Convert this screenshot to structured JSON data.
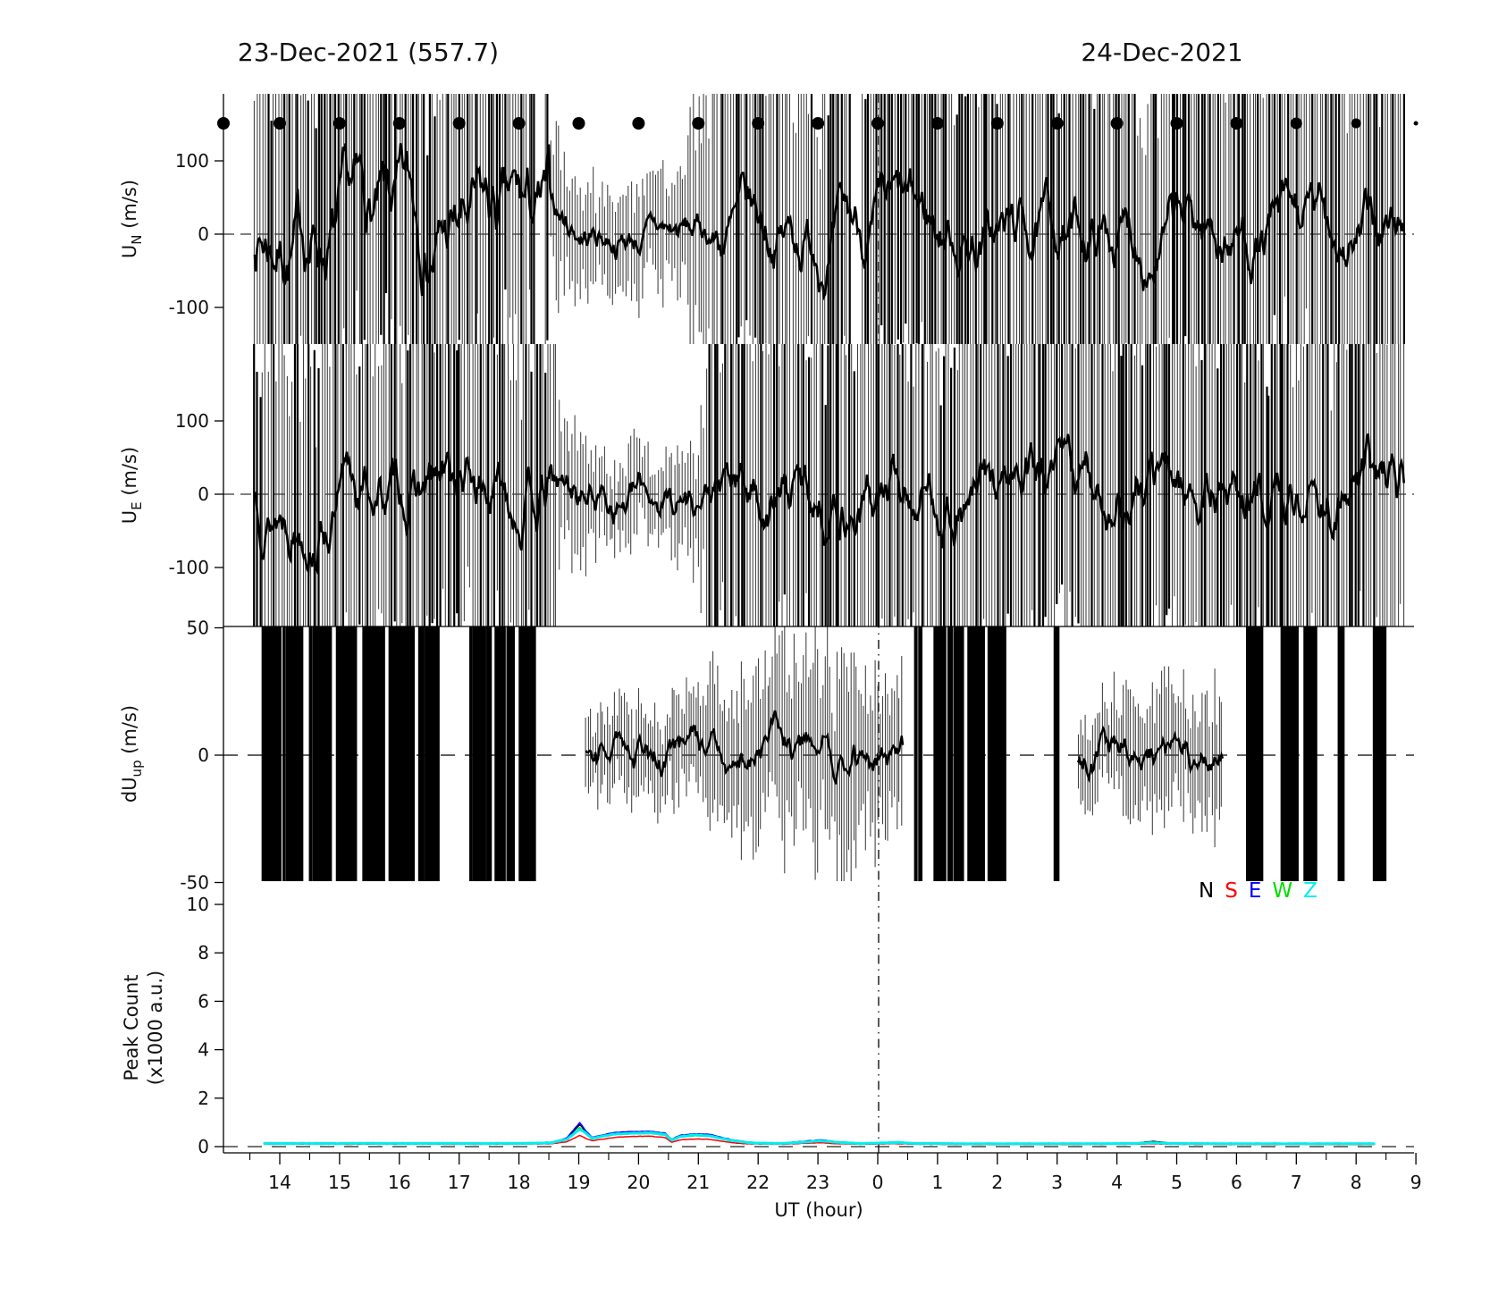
{
  "figure": {
    "title_left": "23-Dec-2021 (557.7)",
    "title_right": "24-Dec-2021",
    "xlabel": "UT (hour)",
    "background": "#ffffff",
    "ink": "#000000",
    "axis": {
      "x_range_hours_from_0UT": [
        -10.94,
        9
      ],
      "x_major": [
        {
          "t": -10,
          "label": "14"
        },
        {
          "t": -9,
          "label": "15"
        },
        {
          "t": -8,
          "label": "16"
        },
        {
          "t": -7,
          "label": "17"
        },
        {
          "t": -6,
          "label": "18"
        },
        {
          "t": -5,
          "label": "19"
        },
        {
          "t": -4,
          "label": "20"
        },
        {
          "t": -3,
          "label": "21"
        },
        {
          "t": -2,
          "label": "22"
        },
        {
          "t": -1,
          "label": "23"
        },
        {
          "t": 0,
          "label": "0"
        },
        {
          "t": 1,
          "label": "1"
        },
        {
          "t": 2,
          "label": "2"
        },
        {
          "t": 3,
          "label": "3"
        },
        {
          "t": 4,
          "label": "4"
        },
        {
          "t": 5,
          "label": "5"
        },
        {
          "t": 6,
          "label": "6"
        },
        {
          "t": 7,
          "label": "7"
        },
        {
          "t": 8,
          "label": "8"
        },
        {
          "t": 9,
          "label": "9"
        }
      ],
      "x_minor_step": 0.5
    },
    "vertical_line": {
      "t": 0,
      "style": "dashdot"
    },
    "hour_markers": {
      "t": [
        -11,
        -10,
        -9,
        -8,
        -7,
        -6,
        -5,
        -4,
        -3,
        -2,
        -1,
        0,
        1,
        2,
        3,
        4,
        5,
        6,
        7,
        8,
        9
      ],
      "radii": [
        7,
        7,
        7,
        7,
        7,
        7,
        7,
        7,
        7,
        7,
        7,
        7,
        7,
        7,
        7,
        7,
        7,
        7,
        6.5,
        5.5,
        2.5
      ]
    }
  },
  "legend": {
    "items": [
      {
        "label": "N",
        "color": "#000000"
      },
      {
        "label": "S",
        "color": "#ff0000"
      },
      {
        "label": "E",
        "color": "#0000ff"
      },
      {
        "label": "W",
        "color": "#00dd00"
      },
      {
        "label": "Z",
        "color": "#00eeee"
      }
    ]
  },
  "chart_data": [
    {
      "id": "u-north",
      "type": "line+errorbar",
      "ylabel": {
        "base": "U",
        "sub": "N",
        "unit": " (m/s)"
      },
      "ylim": [
        -150,
        190
      ],
      "yticks": [
        100,
        0,
        -100
      ],
      "zero_dash": true,
      "x_start": -10.42,
      "x_end": 8.8,
      "seed": 7,
      "mean_sigma": [
        {
          "t0": -10.5,
          "t1": -5.5,
          "a": 60
        },
        {
          "t0": -5.5,
          "t1": -2.75,
          "a": 26
        },
        {
          "t0": -2.75,
          "t1": 8.9,
          "a": 46
        }
      ],
      "err": [
        {
          "t0": -10.5,
          "t1": -5.5,
          "e0": 280,
          "e1": 280
        },
        {
          "t0": -5.5,
          "t1": -4.7,
          "e0": 95,
          "e1": 62
        },
        {
          "t0": -4.7,
          "t1": -3.2,
          "e0": 58,
          "e1": 72
        },
        {
          "t0": -3.2,
          "t1": -2.75,
          "e0": 120,
          "e1": 220
        },
        {
          "t0": -2.75,
          "t1": 8.9,
          "e0": 270,
          "e1": 270
        }
      ],
      "gaps": [
        [
          -5.74,
          -5.6
        ],
        [
          -0.44,
          -0.28
        ]
      ]
    },
    {
      "id": "u-east",
      "type": "line+errorbar",
      "ylabel": {
        "base": "U",
        "sub": "E",
        "unit": " (m/s)"
      },
      "ylim": [
        -175,
        205
      ],
      "yticks": [
        100,
        0,
        -100
      ],
      "zero_dash": true,
      "x_start": -10.42,
      "x_end": 8.8,
      "seed": 13,
      "mean_sigma": [
        {
          "t0": -10.5,
          "t1": -5.35,
          "a": 46
        },
        {
          "t0": -5.35,
          "t1": -2.55,
          "a": 30
        },
        {
          "t0": -2.55,
          "t1": 8.9,
          "a": 46
        }
      ],
      "err": [
        {
          "t0": -10.5,
          "t1": -5.35,
          "e0": 280,
          "e1": 280
        },
        {
          "t0": -5.35,
          "t1": -4.6,
          "e0": 85,
          "e1": 55
        },
        {
          "t0": -4.6,
          "t1": -3.0,
          "e0": 52,
          "e1": 65
        },
        {
          "t0": -3.0,
          "t1": -2.55,
          "e0": 110,
          "e1": 230
        },
        {
          "t0": -2.55,
          "t1": 8.9,
          "e0": 270,
          "e1": 270
        }
      ],
      "gaps": []
    },
    {
      "id": "du-up",
      "type": "line+errorbar-segmented",
      "ylabel": {
        "base": "dU",
        "sub": "up",
        "unit": " (m/s)"
      },
      "ylim": [
        -50,
        50
      ],
      "yticks": [
        50,
        0,
        -50
      ],
      "zero_dash": true,
      "top_frame": true,
      "seed": 29,
      "segments": [
        {
          "t0": -4.88,
          "t1": 0.42,
          "sigma": 8,
          "err": [
            {
              "t0": -4.88,
              "t1": -3.2,
              "e0": 13,
              "e1": 16
            },
            {
              "t0": -3.2,
              "t1": -1.9,
              "e0": 18,
              "e1": 30
            },
            {
              "t0": -1.9,
              "t1": -0.4,
              "e0": 30,
              "e1": 34
            },
            {
              "t0": -0.4,
              "t1": 0.42,
              "e0": 28,
              "e1": 24
            }
          ]
        },
        {
          "t0": 3.35,
          "t1": 5.78,
          "sigma": 8,
          "err": [
            {
              "t0": 3.35,
              "t1": 4.4,
              "e0": 15,
              "e1": 20
            },
            {
              "t0": 4.4,
              "t1": 5.78,
              "e0": 20,
              "e1": 24
            }
          ]
        }
      ],
      "clusters": [
        [
          -10.28,
          -9.99
        ],
        [
          -9.94,
          -9.62
        ],
        [
          -9.5,
          -9.14
        ],
        [
          -9.05,
          -8.73
        ],
        [
          -8.6,
          -8.25
        ],
        [
          -8.16,
          -7.75
        ],
        [
          -7.67,
          -7.34
        ],
        [
          -6.81,
          -6.46
        ],
        [
          -6.39,
          -6.07
        ],
        [
          -6.0,
          -5.72
        ],
        [
          0.62,
          0.74
        ],
        [
          0.95,
          1.13
        ],
        [
          1.18,
          1.43
        ],
        [
          1.52,
          1.79
        ],
        [
          1.85,
          2.15
        ],
        [
          2.96,
          3.03
        ],
        [
          6.18,
          6.45
        ],
        [
          6.76,
          7.06
        ],
        [
          7.12,
          7.33
        ],
        [
          7.71,
          7.81
        ],
        [
          8.3,
          8.5
        ]
      ]
    },
    {
      "id": "peak-count",
      "type": "line-multi",
      "ylabel_lines": [
        "Peak Count",
        "(x1000 a.u.)"
      ],
      "ylim": [
        0,
        10.6
      ],
      "yticks": [
        10,
        8,
        6,
        4,
        2,
        0
      ],
      "zero_dash": true,
      "x": [
        -10.27,
        -6.0,
        -5.45,
        -5.2,
        -4.98,
        -4.9,
        -4.78,
        -4.62,
        -4.4,
        -4.1,
        -3.8,
        -3.55,
        -3.45,
        -3.3,
        -3.05,
        -2.8,
        -2.55,
        -2.35,
        -2.1,
        -1.6,
        -1.15,
        -0.95,
        -0.7,
        -0.3,
        0.1,
        0.35,
        0.6,
        1.5,
        2.5,
        3.5,
        4.3,
        4.6,
        4.9,
        6.0,
        7.0,
        8.0,
        8.35
      ],
      "series": [
        {
          "name": "N",
          "color": "#000000",
          "width": 1.5,
          "values": [
            0.13,
            0.13,
            0.17,
            0.33,
            0.92,
            0.66,
            0.36,
            0.45,
            0.55,
            0.59,
            0.6,
            0.52,
            0.28,
            0.45,
            0.5,
            0.47,
            0.32,
            0.23,
            0.16,
            0.13,
            0.22,
            0.26,
            0.19,
            0.13,
            0.16,
            0.18,
            0.13,
            0.12,
            0.12,
            0.12,
            0.14,
            0.22,
            0.14,
            0.13,
            0.12,
            0.12,
            0.12
          ]
        },
        {
          "name": "S",
          "color": "#ff0000",
          "width": 1.5,
          "values": [
            0.1,
            0.1,
            0.12,
            0.2,
            0.46,
            0.36,
            0.24,
            0.3,
            0.38,
            0.42,
            0.43,
            0.37,
            0.18,
            0.28,
            0.32,
            0.3,
            0.2,
            0.14,
            0.11,
            0.1,
            0.14,
            0.16,
            0.12,
            0.1,
            0.11,
            0.12,
            0.1,
            0.09,
            0.09,
            0.09,
            0.1,
            0.12,
            0.1,
            0.09,
            0.09,
            0.09,
            0.09
          ]
        },
        {
          "name": "E",
          "color": "#0000ff",
          "width": 1.6,
          "values": [
            0.14,
            0.14,
            0.18,
            0.35,
            1.0,
            0.7,
            0.38,
            0.47,
            0.58,
            0.62,
            0.63,
            0.55,
            0.3,
            0.47,
            0.53,
            0.5,
            0.34,
            0.25,
            0.17,
            0.14,
            0.24,
            0.28,
            0.2,
            0.14,
            0.17,
            0.19,
            0.14,
            0.13,
            0.13,
            0.13,
            0.14,
            0.17,
            0.14,
            0.13,
            0.13,
            0.13,
            0.13
          ]
        },
        {
          "name": "W",
          "color": "#00dd00",
          "width": 1.6,
          "values": [
            0.12,
            0.12,
            0.15,
            0.28,
            0.8,
            0.58,
            0.32,
            0.4,
            0.5,
            0.53,
            0.54,
            0.47,
            0.25,
            0.4,
            0.45,
            0.42,
            0.28,
            0.2,
            0.14,
            0.12,
            0.19,
            0.22,
            0.16,
            0.12,
            0.14,
            0.16,
            0.12,
            0.11,
            0.11,
            0.11,
            0.12,
            0.15,
            0.12,
            0.11,
            0.11,
            0.11,
            0.11
          ]
        },
        {
          "name": "Z",
          "color": "#00eeee",
          "width": 3,
          "values": [
            0.13,
            0.13,
            0.16,
            0.3,
            0.72,
            0.6,
            0.33,
            0.42,
            0.52,
            0.55,
            0.57,
            0.5,
            0.26,
            0.42,
            0.48,
            0.44,
            0.3,
            0.22,
            0.15,
            0.13,
            0.2,
            0.24,
            0.18,
            0.13,
            0.15,
            0.17,
            0.13,
            0.12,
            0.12,
            0.12,
            0.13,
            0.16,
            0.13,
            0.12,
            0.12,
            0.12,
            0.12
          ]
        }
      ]
    }
  ]
}
